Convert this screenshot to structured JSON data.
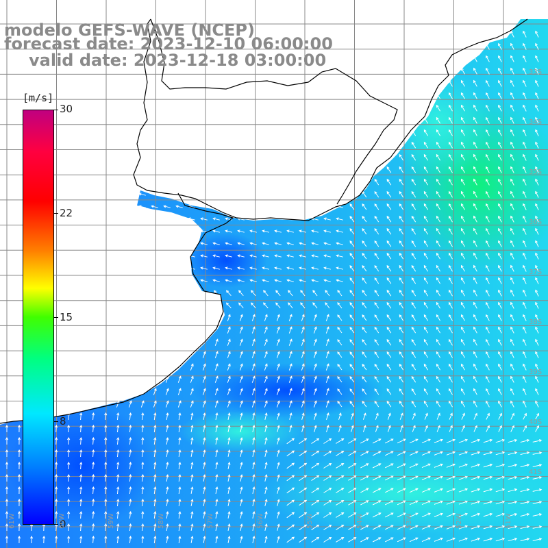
{
  "header": {
    "line1": "modelo GEFS-WAVE (NCEP)",
    "line2": "forecast date: 2023-12-10 06:00:00",
    "line3": "valid date: 2023-12-18 03:00:00"
  },
  "colorbar": {
    "unit": "[m/s]",
    "ticks": [
      "30",
      "22",
      "15",
      "8",
      "0"
    ],
    "colors": [
      "#0000ff",
      "#0080ff",
      "#00e8ff",
      "#00ff80",
      "#40ff00",
      "#ffff00",
      "#ff8000",
      "#ff0000",
      "#c00080"
    ]
  },
  "map": {
    "variable": "wind speed and direction",
    "lon_labels": [
      "61W",
      "60W",
      "59W",
      "58W",
      "57W",
      "56W",
      "55W",
      "54W",
      "53W",
      "52W",
      "51W"
    ],
    "lat_labels": [
      "33S",
      "34S",
      "35S",
      "36S",
      "37S",
      "38S",
      "39S",
      "40S",
      "41S"
    ],
    "land_color": "#ffffff",
    "coast_color": "#000000",
    "grid_color": "#888888"
  }
}
